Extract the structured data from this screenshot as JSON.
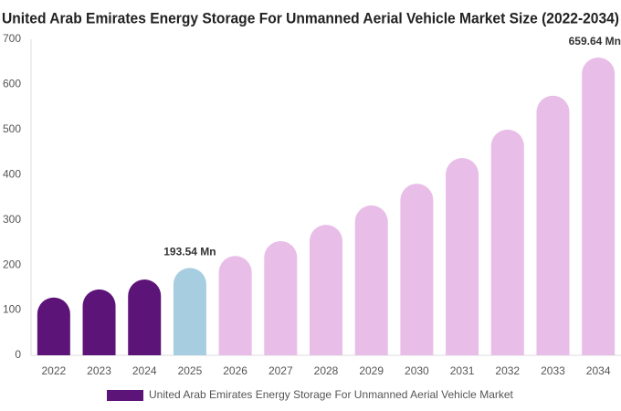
{
  "chart_data": {
    "type": "bar",
    "title": "United Arab Emirates Energy Storage For Unmanned Aerial Vehicle Market Size (2022-2034)",
    "categories": [
      "2022",
      "2023",
      "2024",
      "2025",
      "2026",
      "2027",
      "2028",
      "2029",
      "2030",
      "2031",
      "2032",
      "2033",
      "2034"
    ],
    "series": [
      {
        "name": "United Arab Emirates Energy Storage For Unmanned Aerial Vehicle Market",
        "color": "#5c1479",
        "colors": [
          "#5c1479",
          "#5c1479",
          "#5c1479",
          "#a6cde0",
          "#e8bde8",
          "#e8bde8",
          "#e8bde8",
          "#e8bde8",
          "#e8bde8",
          "#e8bde8",
          "#e8bde8",
          "#e8bde8",
          "#e8bde8"
        ],
        "values": [
          128,
          146,
          168,
          193.54,
          220,
          253,
          289,
          332,
          380,
          437,
          500,
          575,
          659.64
        ],
        "value_labels": [
          null,
          null,
          null,
          "193.54 Mn",
          null,
          null,
          null,
          null,
          null,
          null,
          null,
          null,
          "659.64 Mn"
        ]
      }
    ],
    "ylim": [
      0,
      700
    ],
    "yticks": [
      0,
      100,
      200,
      300,
      400,
      500,
      600,
      700
    ],
    "grid": false
  }
}
